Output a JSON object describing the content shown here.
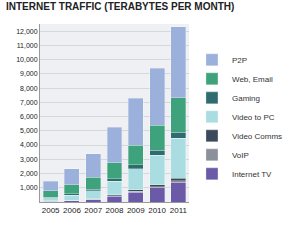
{
  "chart_data": {
    "type": "bar",
    "title": "INTERNET TRAFFIC (TERABYTES PER MONTH)",
    "categories": [
      "2005",
      "2006",
      "2007",
      "2008",
      "2009",
      "2010",
      "2011"
    ],
    "stacked": true,
    "grid": true,
    "legend": "right",
    "ylim": [
      0,
      12500
    ],
    "yticks": [
      {
        "value": 1000,
        "label": "1,000"
      },
      {
        "value": 2000,
        "label": "2,000"
      },
      {
        "value": 3000,
        "label": "3,000"
      },
      {
        "value": 4000,
        "label": "4,000"
      },
      {
        "value": 5000,
        "label": "5,000"
      },
      {
        "value": 6000,
        "label": "6,000"
      },
      {
        "value": 7000,
        "label": "7,000"
      },
      {
        "value": 8000,
        "label": "8,000"
      },
      {
        "value": 9000,
        "label": "9,000"
      },
      {
        "value": 10000,
        "label": "10,000"
      },
      {
        "value": 11000,
        "label": "11,000"
      },
      {
        "value": 12000,
        "label": "12,000"
      }
    ],
    "series": [
      {
        "name": "P2P",
        "color": "#9cb0dc",
        "values": [
          650,
          1100,
          1650,
          2500,
          3300,
          4000,
          5000
        ]
      },
      {
        "name": "Web, Email",
        "color": "#3ea27c",
        "values": [
          450,
          650,
          850,
          1100,
          1400,
          1750,
          2400
        ]
      },
      {
        "name": "Gaming",
        "color": "#2f6c70",
        "values": [
          50,
          80,
          120,
          180,
          250,
          350,
          450
        ]
      },
      {
        "name": "Video to PC",
        "color": "#a9dde1",
        "values": [
          200,
          350,
          550,
          950,
          1500,
          2100,
          2800
        ]
      },
      {
        "name": "Video Comms",
        "color": "#3b4a5a",
        "values": [
          20,
          30,
          40,
          60,
          90,
          130,
          180
        ]
      },
      {
        "name": "VoIP",
        "color": "#8b909a",
        "values": [
          20,
          30,
          40,
          50,
          60,
          70,
          80
        ]
      },
      {
        "name": "Internet TV",
        "color": "#6a5aa8",
        "values": [
          50,
          80,
          150,
          400,
          700,
          1000,
          1400
        ]
      }
    ]
  }
}
